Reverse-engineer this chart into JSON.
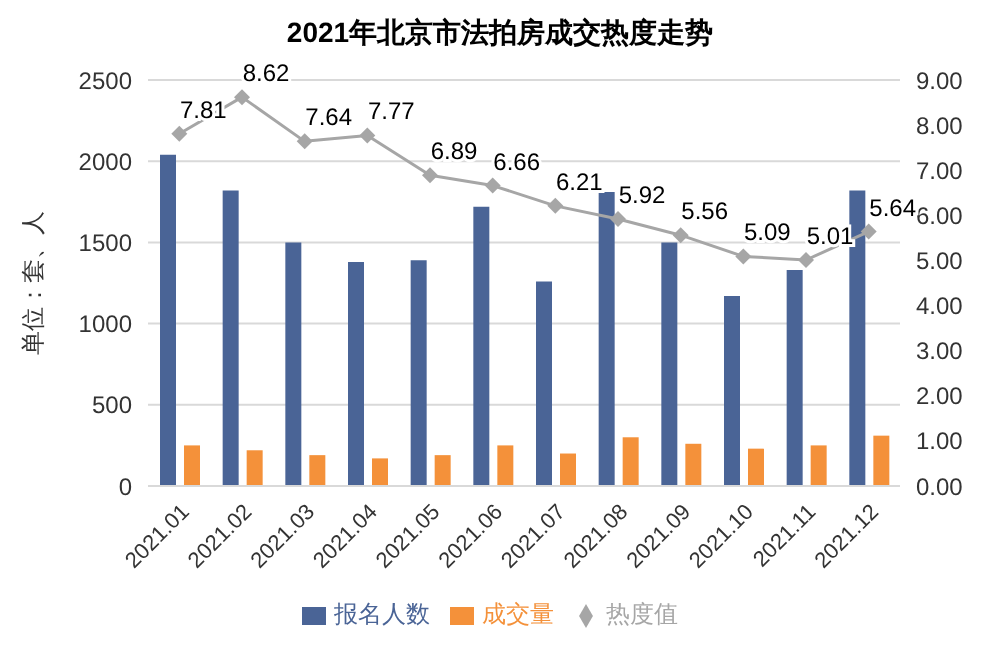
{
  "chart_data": {
    "type": "bar",
    "title": "2021年北京市法拍房成交热度走势",
    "ylabel": "单位：套、人",
    "categories": [
      "2021.01",
      "2021.02",
      "2021.03",
      "2021.04",
      "2021.05",
      "2021.06",
      "2021.07",
      "2021.08",
      "2021.09",
      "2021.10",
      "2021.11",
      "2021.12"
    ],
    "series": [
      {
        "name": "报名人数",
        "color": "#4a6496",
        "values": [
          2040,
          1820,
          1500,
          1380,
          1390,
          1720,
          1260,
          1810,
          1500,
          1170,
          1330,
          1820
        ]
      },
      {
        "name": "成交量",
        "color": "#f4913a",
        "values": [
          250,
          220,
          190,
          170,
          190,
          250,
          200,
          300,
          260,
          230,
          250,
          310
        ]
      },
      {
        "name": "热度值",
        "type": "line",
        "axis": "y2",
        "color": "#a6a6a6",
        "marker": "diamond",
        "data_labels": true,
        "values": [
          7.81,
          8.62,
          7.64,
          7.77,
          6.89,
          6.66,
          6.21,
          5.92,
          5.56,
          5.09,
          5.01,
          5.64
        ]
      }
    ],
    "ylim": [
      0,
      2500
    ],
    "yticks": [
      0,
      500,
      1000,
      1500,
      2000,
      2500
    ],
    "y2lim": [
      0,
      9
    ],
    "y2ticks": [
      {
        "value": 0,
        "label": "0.00"
      },
      {
        "value": 1,
        "label": "1.00"
      },
      {
        "value": 2,
        "label": "2.00"
      },
      {
        "value": 3,
        "label": "3.00"
      },
      {
        "value": 4,
        "label": "4.00"
      },
      {
        "value": 5,
        "label": "5.00"
      },
      {
        "value": 6,
        "label": "6.00"
      },
      {
        "value": 7,
        "label": "7.00"
      },
      {
        "value": 8,
        "label": "8.00"
      },
      {
        "value": 9,
        "label": "9.00"
      }
    ],
    "grid": "y",
    "legend": "bottom"
  }
}
